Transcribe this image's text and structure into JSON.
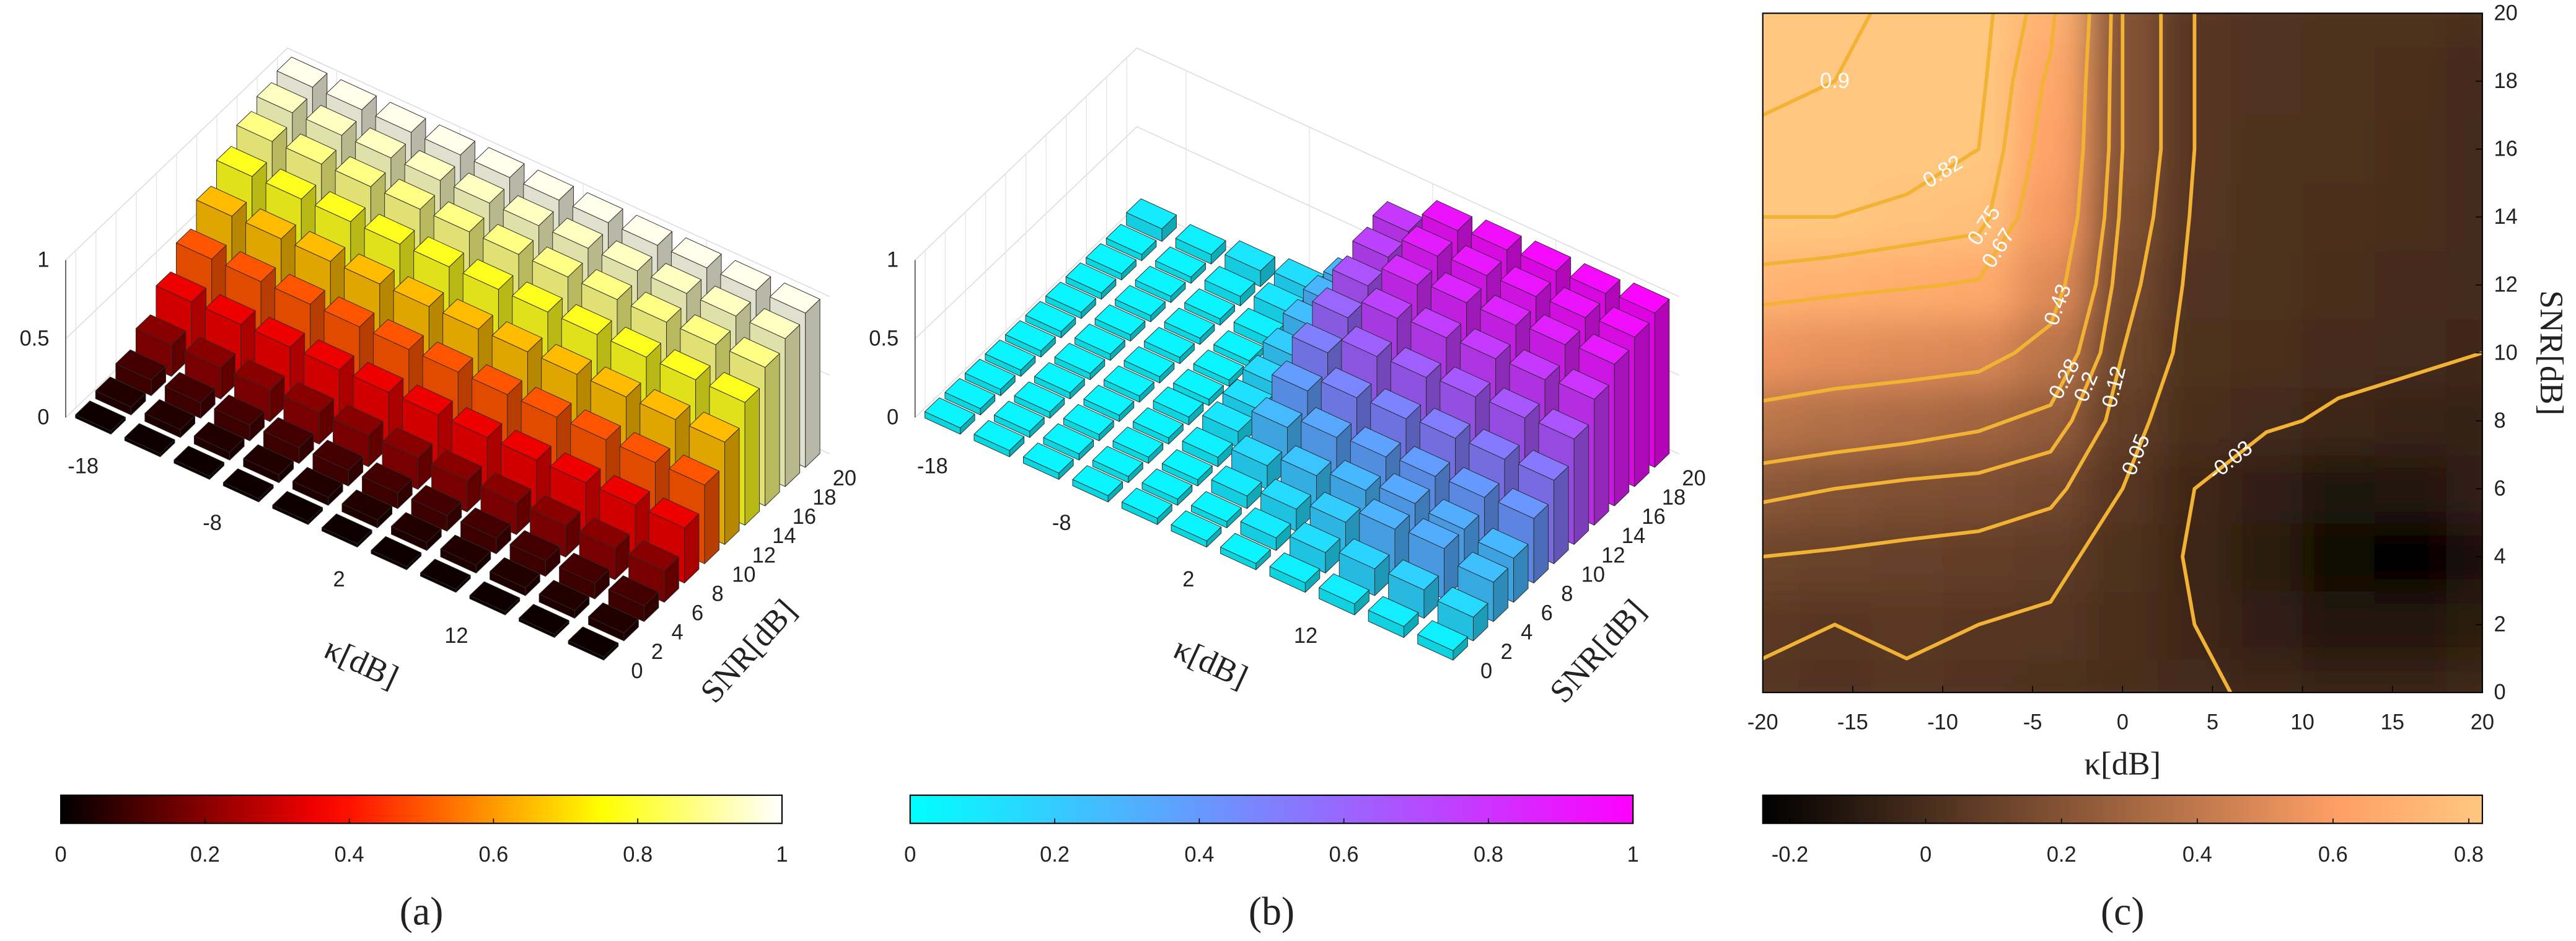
{
  "chart_data": [
    {
      "type": "bar3d",
      "label": "(a)",
      "xlabel": "κ[dB]",
      "ylabel": "SNR[dB]",
      "x": [
        -20,
        -16,
        -12,
        -8,
        -4,
        0,
        4,
        8,
        12,
        16,
        20
      ],
      "y": [
        0,
        2,
        4,
        6,
        8,
        10,
        12,
        14,
        16,
        18,
        20
      ],
      "z": [
        [
          0.02,
          0.02,
          0.02,
          0.02,
          0.02,
          0.02,
          0.02,
          0.02,
          0.02,
          0.02,
          0.02
        ],
        [
          0.05,
          0.05,
          0.05,
          0.05,
          0.05,
          0.05,
          0.05,
          0.05,
          0.05,
          0.05,
          0.05
        ],
        [
          0.1,
          0.1,
          0.1,
          0.1,
          0.1,
          0.1,
          0.1,
          0.1,
          0.1,
          0.1,
          0.1
        ],
        [
          0.2,
          0.2,
          0.2,
          0.2,
          0.2,
          0.2,
          0.2,
          0.2,
          0.2,
          0.2,
          0.2
        ],
        [
          0.35,
          0.35,
          0.35,
          0.35,
          0.35,
          0.35,
          0.35,
          0.35,
          0.35,
          0.35,
          0.35
        ],
        [
          0.5,
          0.5,
          0.5,
          0.5,
          0.5,
          0.5,
          0.5,
          0.5,
          0.5,
          0.5,
          0.5
        ],
        [
          0.65,
          0.65,
          0.65,
          0.65,
          0.65,
          0.65,
          0.65,
          0.65,
          0.65,
          0.65,
          0.65
        ],
        [
          0.78,
          0.78,
          0.78,
          0.78,
          0.78,
          0.78,
          0.78,
          0.78,
          0.78,
          0.78,
          0.78
        ],
        [
          0.88,
          0.88,
          0.88,
          0.88,
          0.88,
          0.88,
          0.88,
          0.88,
          0.88,
          0.88,
          0.88
        ],
        [
          0.94,
          0.94,
          0.94,
          0.94,
          0.94,
          0.94,
          0.94,
          0.94,
          0.94,
          0.94,
          0.94
        ],
        [
          0.98,
          0.98,
          0.98,
          0.98,
          0.98,
          0.98,
          0.98,
          0.98,
          0.98,
          0.98,
          0.98
        ]
      ],
      "xlim": [
        -22,
        22
      ],
      "ylim": [
        -1,
        21
      ],
      "zlim": [
        0,
        1
      ],
      "xticks": [
        -18,
        -8,
        2,
        12
      ],
      "yticks": [
        0,
        2,
        4,
        6,
        8,
        10,
        12,
        14,
        16,
        18,
        20
      ],
      "zticks": [
        0,
        0.5,
        1
      ],
      "colormap": "hot",
      "clim": [
        0,
        1
      ],
      "cticks": [
        0,
        0.2,
        0.4,
        0.6,
        0.8,
        1
      ],
      "grid": true
    },
    {
      "type": "bar3d",
      "label": "(b)",
      "xlabel": "κ[dB]",
      "ylabel": "SNR[dB]",
      "x": [
        -20,
        -16,
        -12,
        -8,
        -4,
        0,
        4,
        8,
        12,
        16,
        20
      ],
      "y": [
        0,
        2,
        4,
        6,
        8,
        10,
        12,
        14,
        16,
        18,
        20
      ],
      "z": [
        [
          0.04,
          0.04,
          0.04,
          0.04,
          0.04,
          0.04,
          0.04,
          0.06,
          0.07,
          0.07,
          0.06
        ],
        [
          0.04,
          0.04,
          0.04,
          0.04,
          0.04,
          0.04,
          0.08,
          0.13,
          0.17,
          0.18,
          0.15
        ],
        [
          0.04,
          0.04,
          0.04,
          0.04,
          0.04,
          0.08,
          0.14,
          0.2,
          0.3,
          0.32,
          0.25
        ],
        [
          0.04,
          0.04,
          0.04,
          0.04,
          0.06,
          0.15,
          0.23,
          0.28,
          0.34,
          0.32,
          0.28
        ],
        [
          0.04,
          0.04,
          0.04,
          0.05,
          0.1,
          0.27,
          0.35,
          0.37,
          0.39,
          0.4,
          0.41
        ],
        [
          0.04,
          0.04,
          0.04,
          0.04,
          0.12,
          0.38,
          0.48,
          0.49,
          0.51,
          0.52,
          0.53
        ],
        [
          0.04,
          0.04,
          0.04,
          0.04,
          0.15,
          0.5,
          0.62,
          0.63,
          0.65,
          0.66,
          0.67
        ],
        [
          0.04,
          0.04,
          0.04,
          0.04,
          0.2,
          0.6,
          0.74,
          0.76,
          0.77,
          0.78,
          0.8
        ],
        [
          0.04,
          0.04,
          0.04,
          0.06,
          0.26,
          0.68,
          0.83,
          0.86,
          0.86,
          0.88,
          0.9
        ],
        [
          0.04,
          0.04,
          0.06,
          0.1,
          0.29,
          0.74,
          0.89,
          0.91,
          0.92,
          0.93,
          0.95
        ],
        [
          0.08,
          0.06,
          0.1,
          0.13,
          0.28,
          0.78,
          0.93,
          0.95,
          0.96,
          0.96,
          0.98
        ]
      ],
      "xlim": [
        -22,
        22
      ],
      "ylim": [
        -1,
        21
      ],
      "zlim": [
        0,
        1
      ],
      "xticks": [
        -18,
        -8,
        2,
        12
      ],
      "yticks": [
        0,
        2,
        4,
        6,
        8,
        10,
        12,
        14,
        16,
        18,
        20
      ],
      "zticks": [
        0,
        0.5,
        1
      ],
      "colormap": "cool",
      "clim": [
        0,
        1
      ],
      "cticks": [
        0,
        0.2,
        0.4,
        0.6,
        0.8,
        1
      ],
      "grid": true
    },
    {
      "type": "contour",
      "label": "(c)",
      "xlabel": "κ[dB]",
      "ylabel": "SNR[dB]",
      "x": [
        -20,
        -16,
        -12,
        -8,
        -4,
        0,
        4,
        8,
        12,
        16,
        20
      ],
      "y": [
        0,
        2,
        4,
        6,
        8,
        10,
        12,
        14,
        16,
        18,
        20
      ],
      "z": [
        [
          0.04,
          0.03,
          0.04,
          0.03,
          0.02,
          0,
          -0.02,
          -0.04,
          -0.05,
          -0.05,
          -0.04
        ],
        [
          0.06,
          0.05,
          0.06,
          0.05,
          0.04,
          0.01,
          -0.03,
          -0.08,
          -0.12,
          -0.13,
          -0.1
        ],
        [
          0.12,
          0.11,
          0.1,
          0.09,
          0.07,
          0.02,
          -0.04,
          -0.1,
          -0.2,
          -0.22,
          -0.15
        ],
        [
          0.22,
          0.2,
          0.18,
          0.17,
          0.14,
          0.05,
          -0.03,
          -0.08,
          -0.14,
          -0.12,
          -0.08
        ],
        [
          0.38,
          0.35,
          0.33,
          0.3,
          0.25,
          0.08,
          0,
          -0.02,
          -0.04,
          -0.05,
          -0.06
        ],
        [
          0.55,
          0.52,
          0.5,
          0.48,
          0.38,
          0.12,
          0.02,
          0.01,
          -0.01,
          -0.02,
          -0.03
        ],
        [
          0.72,
          0.7,
          0.68,
          0.66,
          0.5,
          0.15,
          0.03,
          0.02,
          0,
          -0.01,
          -0.02
        ],
        [
          0.82,
          0.82,
          0.8,
          0.78,
          0.58,
          0.18,
          0.04,
          0.02,
          0.01,
          0,
          -0.02
        ],
        [
          0.88,
          0.88,
          0.86,
          0.82,
          0.62,
          0.2,
          0.05,
          0.02,
          0.02,
          0,
          -0.02
        ],
        [
          0.92,
          0.9,
          0.88,
          0.84,
          0.65,
          0.2,
          0.05,
          0.03,
          0.02,
          0.01,
          -0.01
        ],
        [
          0.9,
          0.92,
          0.88,
          0.85,
          0.7,
          0.2,
          0.05,
          0.03,
          0.02,
          0.02,
          0
        ]
      ],
      "xlim": [
        -20,
        20
      ],
      "ylim": [
        0,
        20
      ],
      "xticks": [
        -20,
        -15,
        -10,
        -5,
        0,
        5,
        10,
        15,
        20
      ],
      "yticks": [
        0,
        2,
        4,
        6,
        8,
        10,
        12,
        14,
        16,
        18,
        20
      ],
      "levels": [
        -0.03,
        0.05,
        0.12,
        0.2,
        0.28,
        0.43,
        0.67,
        0.75,
        0.82,
        0.9
      ],
      "line_color": "#f2b233",
      "colormap": "copper",
      "clim": [
        -0.24,
        0.82
      ],
      "cticks": [
        -0.2,
        0,
        0.2,
        0.4,
        0.6,
        0.8
      ],
      "yaxis": "right"
    }
  ]
}
